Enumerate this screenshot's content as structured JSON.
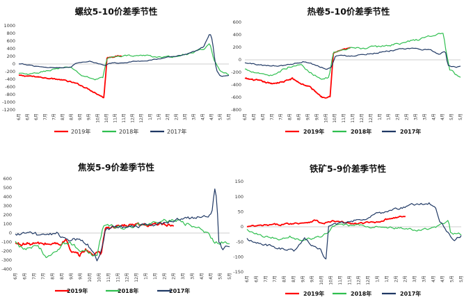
{
  "chart_data": [
    {
      "type": "line",
      "title": "螺纹5-10价差季节性",
      "ylim": [
        -1200,
        1000
      ],
      "yticks": [
        1000,
        800,
        600,
        400,
        200,
        0,
        -200,
        -400,
        -600,
        -800,
        -1000,
        -1200
      ],
      "ytick_labels": [
        "1000",
        "800",
        "600",
        "400",
        "200",
        "0",
        "-200",
        "-400",
        "-600",
        "-800",
        "-1000",
        "-1200"
      ],
      "x_tick_labels": [
        "6月",
        "6月",
        "6月",
        "7月",
        "7月",
        "8月",
        "8月",
        "9月",
        "9月",
        "10月",
        "10月",
        "11月",
        "11月",
        "12月",
        "12月",
        "1月",
        "1月",
        "2月",
        "2月",
        "3月",
        "3月",
        "4月",
        "4月",
        "5月",
        "5月"
      ],
      "legend_bold": false,
      "series": [
        {
          "name": "2019年",
          "color": "#ff0000",
          "end": 0.49,
          "noise": 14,
          "points": [
            [
              0,
              -300
            ],
            [
              0.08,
              -330
            ],
            [
              0.16,
              -380
            ],
            [
              0.22,
              -430
            ],
            [
              0.28,
              -520
            ],
            [
              0.33,
              -650
            ],
            [
              0.38,
              -800
            ],
            [
              0.405,
              -880
            ],
            [
              0.415,
              -200
            ],
            [
              0.42,
              170
            ],
            [
              0.46,
              200
            ],
            [
              0.5,
              210
            ]
          ]
        },
        {
          "name": "2018年",
          "color": "#2fbf4f",
          "end": 1.0,
          "noise": 22,
          "points": [
            [
              0,
              -250
            ],
            [
              0.05,
              -280
            ],
            [
              0.1,
              -220
            ],
            [
              0.18,
              -120
            ],
            [
              0.25,
              -90
            ],
            [
              0.3,
              -300
            ],
            [
              0.36,
              -400
            ],
            [
              0.4,
              -350
            ],
            [
              0.42,
              150
            ],
            [
              0.5,
              220
            ],
            [
              0.6,
              220
            ],
            [
              0.7,
              170
            ],
            [
              0.8,
              250
            ],
            [
              0.88,
              400
            ],
            [
              0.91,
              520
            ],
            [
              0.93,
              100
            ],
            [
              0.96,
              -220
            ],
            [
              1.0,
              -280
            ]
          ]
        },
        {
          "name": "2017年",
          "color": "#1f3864",
          "end": 1.0,
          "noise": 14,
          "points": [
            [
              0,
              0
            ],
            [
              0.05,
              -30
            ],
            [
              0.12,
              -80
            ],
            [
              0.2,
              -100
            ],
            [
              0.25,
              -60
            ],
            [
              0.28,
              30
            ],
            [
              0.34,
              70
            ],
            [
              0.39,
              0
            ],
            [
              0.41,
              -30
            ],
            [
              0.43,
              20
            ],
            [
              0.5,
              40
            ],
            [
              0.6,
              90
            ],
            [
              0.7,
              160
            ],
            [
              0.75,
              210
            ],
            [
              0.8,
              260
            ],
            [
              0.85,
              360
            ],
            [
              0.88,
              450
            ],
            [
              0.91,
              810
            ],
            [
              0.92,
              650
            ],
            [
              0.94,
              -150
            ],
            [
              0.96,
              -330
            ],
            [
              1.0,
              -280
            ]
          ]
        }
      ]
    },
    {
      "type": "line",
      "title": "热卷5-10价差季节性",
      "ylim": [
        -800,
        600
      ],
      "yticks": [
        600,
        400,
        200,
        0,
        -200,
        -400,
        -600,
        -800
      ],
      "ytick_labels": [
        "600",
        "400",
        "200",
        "0",
        "-200",
        "-400",
        "-600",
        "-800"
      ],
      "x_tick_labels": [
        "6月",
        "6月",
        "6月",
        "7月",
        "7月",
        "8月",
        "8月",
        "9月",
        "9月",
        "10月",
        "10月",
        "11月",
        "11月",
        "12月",
        "12月",
        "1月",
        "1月",
        "2月",
        "2月",
        "3月",
        "3月",
        "4月",
        "4月",
        "5月",
        "5月"
      ],
      "legend_bold": true,
      "series": [
        {
          "name": "2019年",
          "color": "#ff0000",
          "end": 0.49,
          "noise": 12,
          "points": [
            [
              0,
              -300
            ],
            [
              0.06,
              -330
            ],
            [
              0.12,
              -380
            ],
            [
              0.18,
              -350
            ],
            [
              0.22,
              -300
            ],
            [
              0.26,
              -380
            ],
            [
              0.3,
              -430
            ],
            [
              0.36,
              -600
            ],
            [
              0.395,
              -580
            ],
            [
              0.41,
              100
            ],
            [
              0.44,
              150
            ],
            [
              0.5,
              200
            ],
            [
              0.55,
              230
            ]
          ]
        },
        {
          "name": "2018年",
          "color": "#2fbf4f",
          "end": 1.0,
          "noise": 18,
          "points": [
            [
              0,
              -150
            ],
            [
              0.06,
              -200
            ],
            [
              0.12,
              -250
            ],
            [
              0.2,
              -120
            ],
            [
              0.26,
              -80
            ],
            [
              0.3,
              -200
            ],
            [
              0.36,
              -300
            ],
            [
              0.39,
              -280
            ],
            [
              0.41,
              100
            ],
            [
              0.5,
              180
            ],
            [
              0.6,
              200
            ],
            [
              0.7,
              250
            ],
            [
              0.8,
              320
            ],
            [
              0.88,
              400
            ],
            [
              0.92,
              420
            ],
            [
              0.935,
              100
            ],
            [
              0.95,
              -150
            ],
            [
              1.0,
              -300
            ]
          ]
        },
        {
          "name": "2017年",
          "color": "#1f3864",
          "end": 1.0,
          "noise": 12,
          "points": [
            [
              0,
              -50
            ],
            [
              0.05,
              -70
            ],
            [
              0.12,
              -100
            ],
            [
              0.2,
              -80
            ],
            [
              0.28,
              -20
            ],
            [
              0.34,
              -100
            ],
            [
              0.38,
              -140
            ],
            [
              0.4,
              -120
            ],
            [
              0.42,
              60
            ],
            [
              0.5,
              70
            ],
            [
              0.6,
              110
            ],
            [
              0.7,
              160
            ],
            [
              0.8,
              180
            ],
            [
              0.86,
              150
            ],
            [
              0.9,
              100
            ],
            [
              0.93,
              140
            ],
            [
              0.94,
              -80
            ],
            [
              0.96,
              -120
            ],
            [
              1.0,
              -110
            ]
          ]
        }
      ]
    },
    {
      "type": "line",
      "title": "焦炭5-9价差季节性",
      "ylim": [
        -400,
        600
      ],
      "yticks": [
        600,
        500,
        400,
        300,
        200,
        100,
        0,
        -100,
        -200,
        -300,
        -400
      ],
      "ytick_labels": [
        "600",
        "500",
        "400",
        "300",
        "200",
        "100",
        "0",
        "-100",
        "-200",
        "-300",
        "-400"
      ],
      "x_tick_labels": [
        "6月",
        "6月",
        "7月",
        "7月",
        "8月",
        "8月",
        "9月",
        "9月",
        "10月",
        "10月",
        "11月",
        "11月",
        "12月",
        "12月",
        "1月",
        "1月",
        "2月",
        "2月",
        "3月",
        "3月",
        "4月",
        "4月",
        "5月",
        "5月"
      ],
      "legend_bold": true,
      "series": [
        {
          "name": "2019年",
          "color": "#ff0000",
          "end": 0.74,
          "noise": 22,
          "points": [
            [
              0,
              -120
            ],
            [
              0.1,
              -120
            ],
            [
              0.2,
              -120
            ],
            [
              0.24,
              -80
            ],
            [
              0.26,
              -220
            ],
            [
              0.3,
              -250
            ],
            [
              0.33,
              -180
            ],
            [
              0.37,
              -250
            ],
            [
              0.39,
              -200
            ],
            [
              0.4,
              -230
            ],
            [
              0.42,
              60
            ],
            [
              0.5,
              80
            ],
            [
              0.6,
              90
            ],
            [
              0.7,
              85
            ],
            [
              0.74,
              60
            ],
            [
              0.8,
              80
            ]
          ]
        },
        {
          "name": "2018年",
          "color": "#2fbf4f",
          "end": 1.0,
          "noise": 25,
          "points": [
            [
              0,
              -100
            ],
            [
              0.05,
              -200
            ],
            [
              0.1,
              -140
            ],
            [
              0.15,
              -260
            ],
            [
              0.2,
              -160
            ],
            [
              0.25,
              -100
            ],
            [
              0.3,
              -180
            ],
            [
              0.35,
              -220
            ],
            [
              0.38,
              -260
            ],
            [
              0.41,
              80
            ],
            [
              0.5,
              50
            ],
            [
              0.6,
              90
            ],
            [
              0.7,
              130
            ],
            [
              0.78,
              120
            ],
            [
              0.84,
              70
            ],
            [
              0.9,
              -20
            ],
            [
              0.93,
              -100
            ],
            [
              0.97,
              -100
            ],
            [
              1.0,
              -120
            ]
          ]
        },
        {
          "name": "2017年",
          "color": "#1f3864",
          "end": 1.0,
          "noise": 25,
          "points": [
            [
              0,
              -20
            ],
            [
              0.05,
              0
            ],
            [
              0.1,
              -20
            ],
            [
              0.15,
              0
            ],
            [
              0.2,
              0
            ],
            [
              0.25,
              -80
            ],
            [
              0.3,
              -60
            ],
            [
              0.34,
              -120
            ],
            [
              0.37,
              -250
            ],
            [
              0.38,
              -330
            ],
            [
              0.395,
              -250
            ],
            [
              0.42,
              40
            ],
            [
              0.5,
              60
            ],
            [
              0.6,
              80
            ],
            [
              0.7,
              120
            ],
            [
              0.75,
              140
            ],
            [
              0.8,
              170
            ],
            [
              0.85,
              170
            ],
            [
              0.9,
              200
            ],
            [
              0.92,
              250
            ],
            [
              0.93,
              480
            ],
            [
              0.94,
              350
            ],
            [
              0.95,
              -100
            ],
            [
              0.97,
              -180
            ],
            [
              1.0,
              -150
            ]
          ]
        }
      ]
    },
    {
      "type": "line",
      "title": "铁矿5-9价差季节性",
      "ylim": [
        -150,
        150
      ],
      "yticks": [
        150,
        100,
        50,
        0,
        -50,
        -100,
        -150
      ],
      "ytick_labels": [
        "150",
        "100",
        "50",
        "0",
        "-50",
        "-100",
        "-150"
      ],
      "x_tick_labels": [
        "6月",
        "6月",
        "7月",
        "7月",
        "8月",
        "8月",
        "9月",
        "9月",
        "10月",
        "10月",
        "11月",
        "11月",
        "12月",
        "12月",
        "1月",
        "1月",
        "2月",
        "2月",
        "3月",
        "3月",
        "4月",
        "4月",
        "5月",
        "5月"
      ],
      "legend_bold": true,
      "series": [
        {
          "name": "2019年",
          "color": "#ff0000",
          "end": 0.74,
          "noise": 3,
          "points": [
            [
              0,
              0
            ],
            [
              0.1,
              5
            ],
            [
              0.2,
              10
            ],
            [
              0.28,
              15
            ],
            [
              0.32,
              22
            ],
            [
              0.35,
              10
            ],
            [
              0.4,
              18
            ],
            [
              0.5,
              10
            ],
            [
              0.6,
              15
            ],
            [
              0.68,
              30
            ],
            [
              0.74,
              35
            ],
            [
              0.78,
              40
            ]
          ]
        },
        {
          "name": "2018年",
          "color": "#2fbf4f",
          "end": 1.0,
          "noise": 4,
          "points": [
            [
              0,
              -10
            ],
            [
              0.08,
              -30
            ],
            [
              0.15,
              -40
            ],
            [
              0.2,
              -30
            ],
            [
              0.25,
              -45
            ],
            [
              0.3,
              -40
            ],
            [
              0.35,
              -30
            ],
            [
              0.38,
              -20
            ],
            [
              0.4,
              0
            ],
            [
              0.45,
              5
            ],
            [
              0.5,
              5
            ],
            [
              0.6,
              0
            ],
            [
              0.7,
              -5
            ],
            [
              0.8,
              -10
            ],
            [
              0.88,
              -5
            ],
            [
              0.92,
              10
            ],
            [
              0.94,
              20
            ],
            [
              0.95,
              -20
            ],
            [
              1.0,
              -25
            ]
          ]
        },
        {
          "name": "2017年",
          "color": "#1f3864",
          "end": 1.0,
          "noise": 5,
          "points": [
            [
              0,
              -40
            ],
            [
              0.08,
              -60
            ],
            [
              0.15,
              -70
            ],
            [
              0.22,
              -80
            ],
            [
              0.27,
              -40
            ],
            [
              0.3,
              -60
            ],
            [
              0.34,
              -70
            ],
            [
              0.36,
              -100
            ],
            [
              0.37,
              -105
            ],
            [
              0.38,
              0
            ],
            [
              0.42,
              10
            ],
            [
              0.5,
              20
            ],
            [
              0.6,
              40
            ],
            [
              0.7,
              60
            ],
            [
              0.8,
              75
            ],
            [
              0.85,
              80
            ],
            [
              0.88,
              60
            ],
            [
              0.9,
              20
            ],
            [
              0.92,
              0
            ],
            [
              0.95,
              -30
            ],
            [
              0.97,
              -40
            ],
            [
              1.0,
              -30
            ]
          ]
        }
      ]
    }
  ]
}
